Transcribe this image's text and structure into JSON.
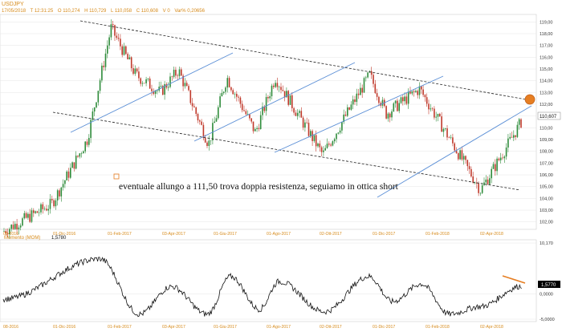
{
  "header": {
    "symbol": "USDJPY",
    "date": "17/05/2018",
    "time": "T 12:31:25",
    "open": "O 110,274",
    "high": "H 110,729",
    "low": "L 110,058",
    "close": "C 110,608",
    "volume": "V 0",
    "var": "Var% 0,20656"
  },
  "colors": {
    "accent_orange": "#e67e22",
    "trendline_blue": "#5b8fd6",
    "candle_up": "#2e8b3a",
    "candle_down": "#c0392b",
    "axis_label": "#d68a1a",
    "grid": "#e6e6e6"
  },
  "annotation": {
    "text": "eventuale allungo a 111,50 trova doppia resistenza, seguiamo in ottica short"
  },
  "price_axis": {
    "ticks": [
      "119,00",
      "118,00",
      "117,00",
      "116,00",
      "115,00",
      "114,00",
      "113,00",
      "112,00",
      "111,00",
      "110,00",
      "109,00",
      "108,00",
      "107,00",
      "106,00",
      "105,00",
      "104,00",
      "103,00",
      "102,00"
    ],
    "last_price_label": "110,607"
  },
  "time_axis": {
    "labels": [
      "08-2016",
      "01-Dic-2016",
      "01-Feb-2017",
      "03-Apr-2017",
      "01-Giu-2017",
      "01-Ago-2017",
      "02-Ott-2017",
      "01-Dic-2017",
      "01-Feb-2018",
      "02-Apr-2018"
    ]
  },
  "momentum": {
    "title": "Momento (MOM)",
    "peak_value": "1,5780",
    "last_value": "1,5770",
    "ticks": [
      "10,170",
      "0,0000",
      "-5,0000"
    ]
  },
  "chart_data": [
    {
      "type": "candlestick",
      "title": "USDJPY",
      "ylim": [
        101.5,
        119.5
      ],
      "x_range": [
        "2016-08",
        "2018-05-17"
      ],
      "key_levels": {
        "resistance_target": 111.5,
        "last_close": 110.607
      },
      "approx_close_path": [
        {
          "x": "2016-08",
          "y": 101.2
        },
        {
          "x": "2016-10",
          "y": 103.5
        },
        {
          "x": "2016-11-15",
          "y": 109.0
        },
        {
          "x": "2016-12-15",
          "y": 118.5
        },
        {
          "x": "2017-01-15",
          "y": 114.5
        },
        {
          "x": "2017-02-15",
          "y": 113.0
        },
        {
          "x": "2017-03-10",
          "y": 114.9
        },
        {
          "x": "2017-04-17",
          "y": 108.6
        },
        {
          "x": "2017-05-10",
          "y": 114.3
        },
        {
          "x": "2017-06-15",
          "y": 109.6
        },
        {
          "x": "2017-07-10",
          "y": 114.3
        },
        {
          "x": "2017-09-08",
          "y": 107.7
        },
        {
          "x": "2017-11-06",
          "y": 114.5
        },
        {
          "x": "2017-11-27",
          "y": 111.2
        },
        {
          "x": "2018-01-08",
          "y": 113.3
        },
        {
          "x": "2018-03-26",
          "y": 104.7
        },
        {
          "x": "2018-04-20",
          "y": 107.5
        },
        {
          "x": "2018-05-17",
          "y": 110.6
        }
      ],
      "legend_position": "none"
    },
    {
      "type": "line",
      "title": "Momento (MOM)",
      "ylim": [
        -5,
        10.17
      ],
      "x_range": [
        "2016-08",
        "2018-05-17"
      ],
      "approx_values": [
        {
          "x": "2016-08",
          "y": -1.0
        },
        {
          "x": "2016-12-01",
          "y": 7.0
        },
        {
          "x": "2017-01-20",
          "y": -4.0
        },
        {
          "x": "2017-03-01",
          "y": 1.5
        },
        {
          "x": "2017-04-15",
          "y": -4.0
        },
        {
          "x": "2017-05-15",
          "y": 3.5
        },
        {
          "x": "2017-06-20",
          "y": -3.0
        },
        {
          "x": "2017-07-15",
          "y": 2.5
        },
        {
          "x": "2017-09-10",
          "y": -3.5
        },
        {
          "x": "2017-11-05",
          "y": 3.5
        },
        {
          "x": "2017-12-05",
          "y": -1.5
        },
        {
          "x": "2018-01-10",
          "y": 2.0
        },
        {
          "x": "2018-02-15",
          "y": -4.0
        },
        {
          "x": "2018-03-25",
          "y": -2.5
        },
        {
          "x": "2018-05-17",
          "y": 1.577
        }
      ]
    }
  ]
}
